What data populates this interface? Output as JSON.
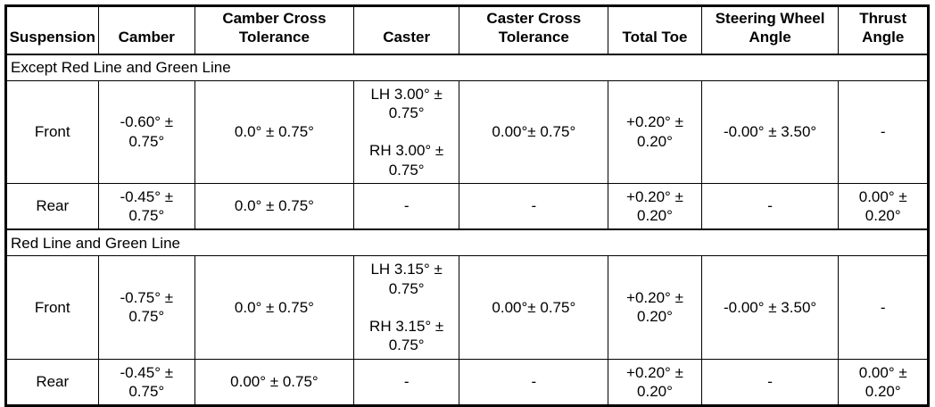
{
  "table": {
    "columns": [
      "Suspension",
      "Camber",
      "Camber Cross Tolerance",
      "Caster",
      "Caster Cross Tolerance",
      "Total Toe",
      "Steering Wheel Angle",
      "Thrust Angle"
    ],
    "sections": [
      {
        "title": "Except Red Line and Green Line",
        "rows": [
          {
            "label": "Front",
            "cells": [
              "Front",
              "-0.60° ±\n0.75°",
              "0.0° ± 0.75°",
              "LH 3.00° ±\n0.75°\n\nRH 3.00° ±\n0.75°",
              "0.00°± 0.75°",
              "+0.20° ±\n0.20°",
              "-0.00° ± 3.50°",
              "-"
            ]
          },
          {
            "label": "Rear",
            "cells": [
              "Rear",
              "-0.45° ±\n0.75°",
              "0.0° ± 0.75°",
              "-",
              "-",
              "+0.20° ±\n0.20°",
              "-",
              "0.00° ±\n0.20°"
            ]
          }
        ]
      },
      {
        "title": "Red Line and Green Line",
        "rows": [
          {
            "label": "Front",
            "cells": [
              "Front",
              "-0.75° ±\n0.75°",
              "0.0° ± 0.75°",
              "LH 3.15° ±\n0.75°\n\nRH 3.15° ±\n0.75°",
              "0.00°± 0.75°",
              "+0.20° ±\n0.20°",
              "-0.00° ± 3.50°",
              "-"
            ]
          },
          {
            "label": "Rear",
            "cells": [
              "Rear",
              "-0.45° ±\n0.75°",
              "0.00° ± 0.75°",
              "-",
              "-",
              "+0.20° ±\n0.20°",
              "-",
              "0.00° ±\n0.20°"
            ]
          }
        ]
      }
    ]
  },
  "colors": {
    "border": "#000000",
    "text": "#000000",
    "background": "#ffffff"
  }
}
